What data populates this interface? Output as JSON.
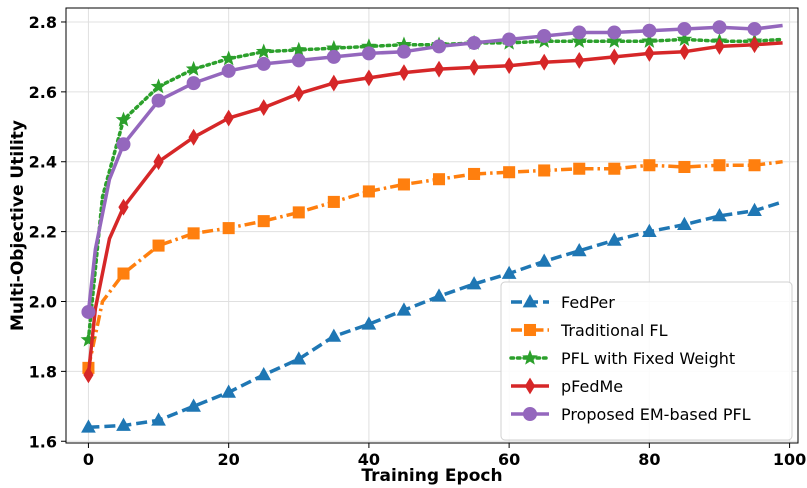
{
  "chart_data": {
    "type": "line",
    "xlabel": "Training Epoch",
    "ylabel": "Multi-Objective Utility",
    "xlim": [
      -3.2,
      101.2
    ],
    "ylim": [
      1.595,
      2.84
    ],
    "xticks": [
      0,
      20,
      40,
      60,
      80,
      100
    ],
    "yticks": [
      1.6,
      1.8,
      2.0,
      2.2,
      2.4,
      2.6,
      2.8
    ],
    "grid": true,
    "legend_position": "lower-right",
    "series": [
      {
        "name": "FedPer",
        "color": "#1f77b4",
        "marker": "triangle",
        "dash": "dashed",
        "x": [
          0,
          5,
          10,
          15,
          20,
          25,
          30,
          35,
          40,
          45,
          50,
          55,
          60,
          65,
          70,
          75,
          80,
          85,
          90,
          95,
          99
        ],
        "y": [
          1.64,
          1.645,
          1.66,
          1.7,
          1.74,
          1.79,
          1.835,
          1.9,
          1.935,
          1.975,
          2.015,
          2.05,
          2.08,
          2.115,
          2.145,
          2.175,
          2.2,
          2.22,
          2.245,
          2.26,
          2.285
        ]
      },
      {
        "name": "Traditional FL",
        "color": "#ff7f0e",
        "marker": "square",
        "dash": "dashdot",
        "x": [
          0,
          2,
          5,
          10,
          15,
          20,
          25,
          30,
          35,
          40,
          45,
          50,
          55,
          60,
          65,
          70,
          75,
          80,
          85,
          90,
          95,
          99
        ],
        "y": [
          1.81,
          2.0,
          2.08,
          2.16,
          2.195,
          2.21,
          2.23,
          2.255,
          2.285,
          2.315,
          2.335,
          2.35,
          2.365,
          2.37,
          2.375,
          2.38,
          2.38,
          2.39,
          2.385,
          2.39,
          2.39,
          2.4
        ]
      },
      {
        "name": "PFL with Fixed Weight",
        "color": "#2ca02c",
        "marker": "star",
        "dash": "dotted",
        "x": [
          0,
          2,
          5,
          10,
          15,
          20,
          25,
          30,
          35,
          40,
          45,
          50,
          55,
          60,
          65,
          70,
          75,
          80,
          85,
          90,
          95,
          99
        ],
        "y": [
          1.89,
          2.3,
          2.52,
          2.615,
          2.665,
          2.695,
          2.715,
          2.72,
          2.725,
          2.73,
          2.735,
          2.735,
          2.74,
          2.74,
          2.745,
          2.745,
          2.745,
          2.745,
          2.75,
          2.745,
          2.745,
          2.75
        ]
      },
      {
        "name": "pFedMe",
        "color": "#d62728",
        "marker": "diamond",
        "dash": "solid",
        "x": [
          0,
          1,
          3,
          5,
          10,
          15,
          20,
          25,
          30,
          35,
          40,
          45,
          50,
          55,
          60,
          65,
          70,
          75,
          80,
          85,
          90,
          95,
          99
        ],
        "y": [
          1.79,
          1.98,
          2.18,
          2.27,
          2.4,
          2.47,
          2.525,
          2.555,
          2.595,
          2.625,
          2.64,
          2.655,
          2.665,
          2.67,
          2.675,
          2.685,
          2.69,
          2.7,
          2.71,
          2.715,
          2.73,
          2.735,
          2.74
        ]
      },
      {
        "name": "Proposed EM-based PFL",
        "color": "#9467bd",
        "marker": "circle",
        "dash": "solid",
        "x": [
          0,
          1,
          3,
          5,
          10,
          15,
          20,
          25,
          30,
          35,
          40,
          45,
          50,
          55,
          60,
          65,
          70,
          75,
          80,
          85,
          90,
          95,
          99
        ],
        "y": [
          1.97,
          2.15,
          2.35,
          2.45,
          2.575,
          2.625,
          2.66,
          2.68,
          2.69,
          2.7,
          2.71,
          2.715,
          2.73,
          2.74,
          2.75,
          2.76,
          2.77,
          2.77,
          2.775,
          2.78,
          2.785,
          2.78,
          2.79
        ]
      }
    ]
  }
}
